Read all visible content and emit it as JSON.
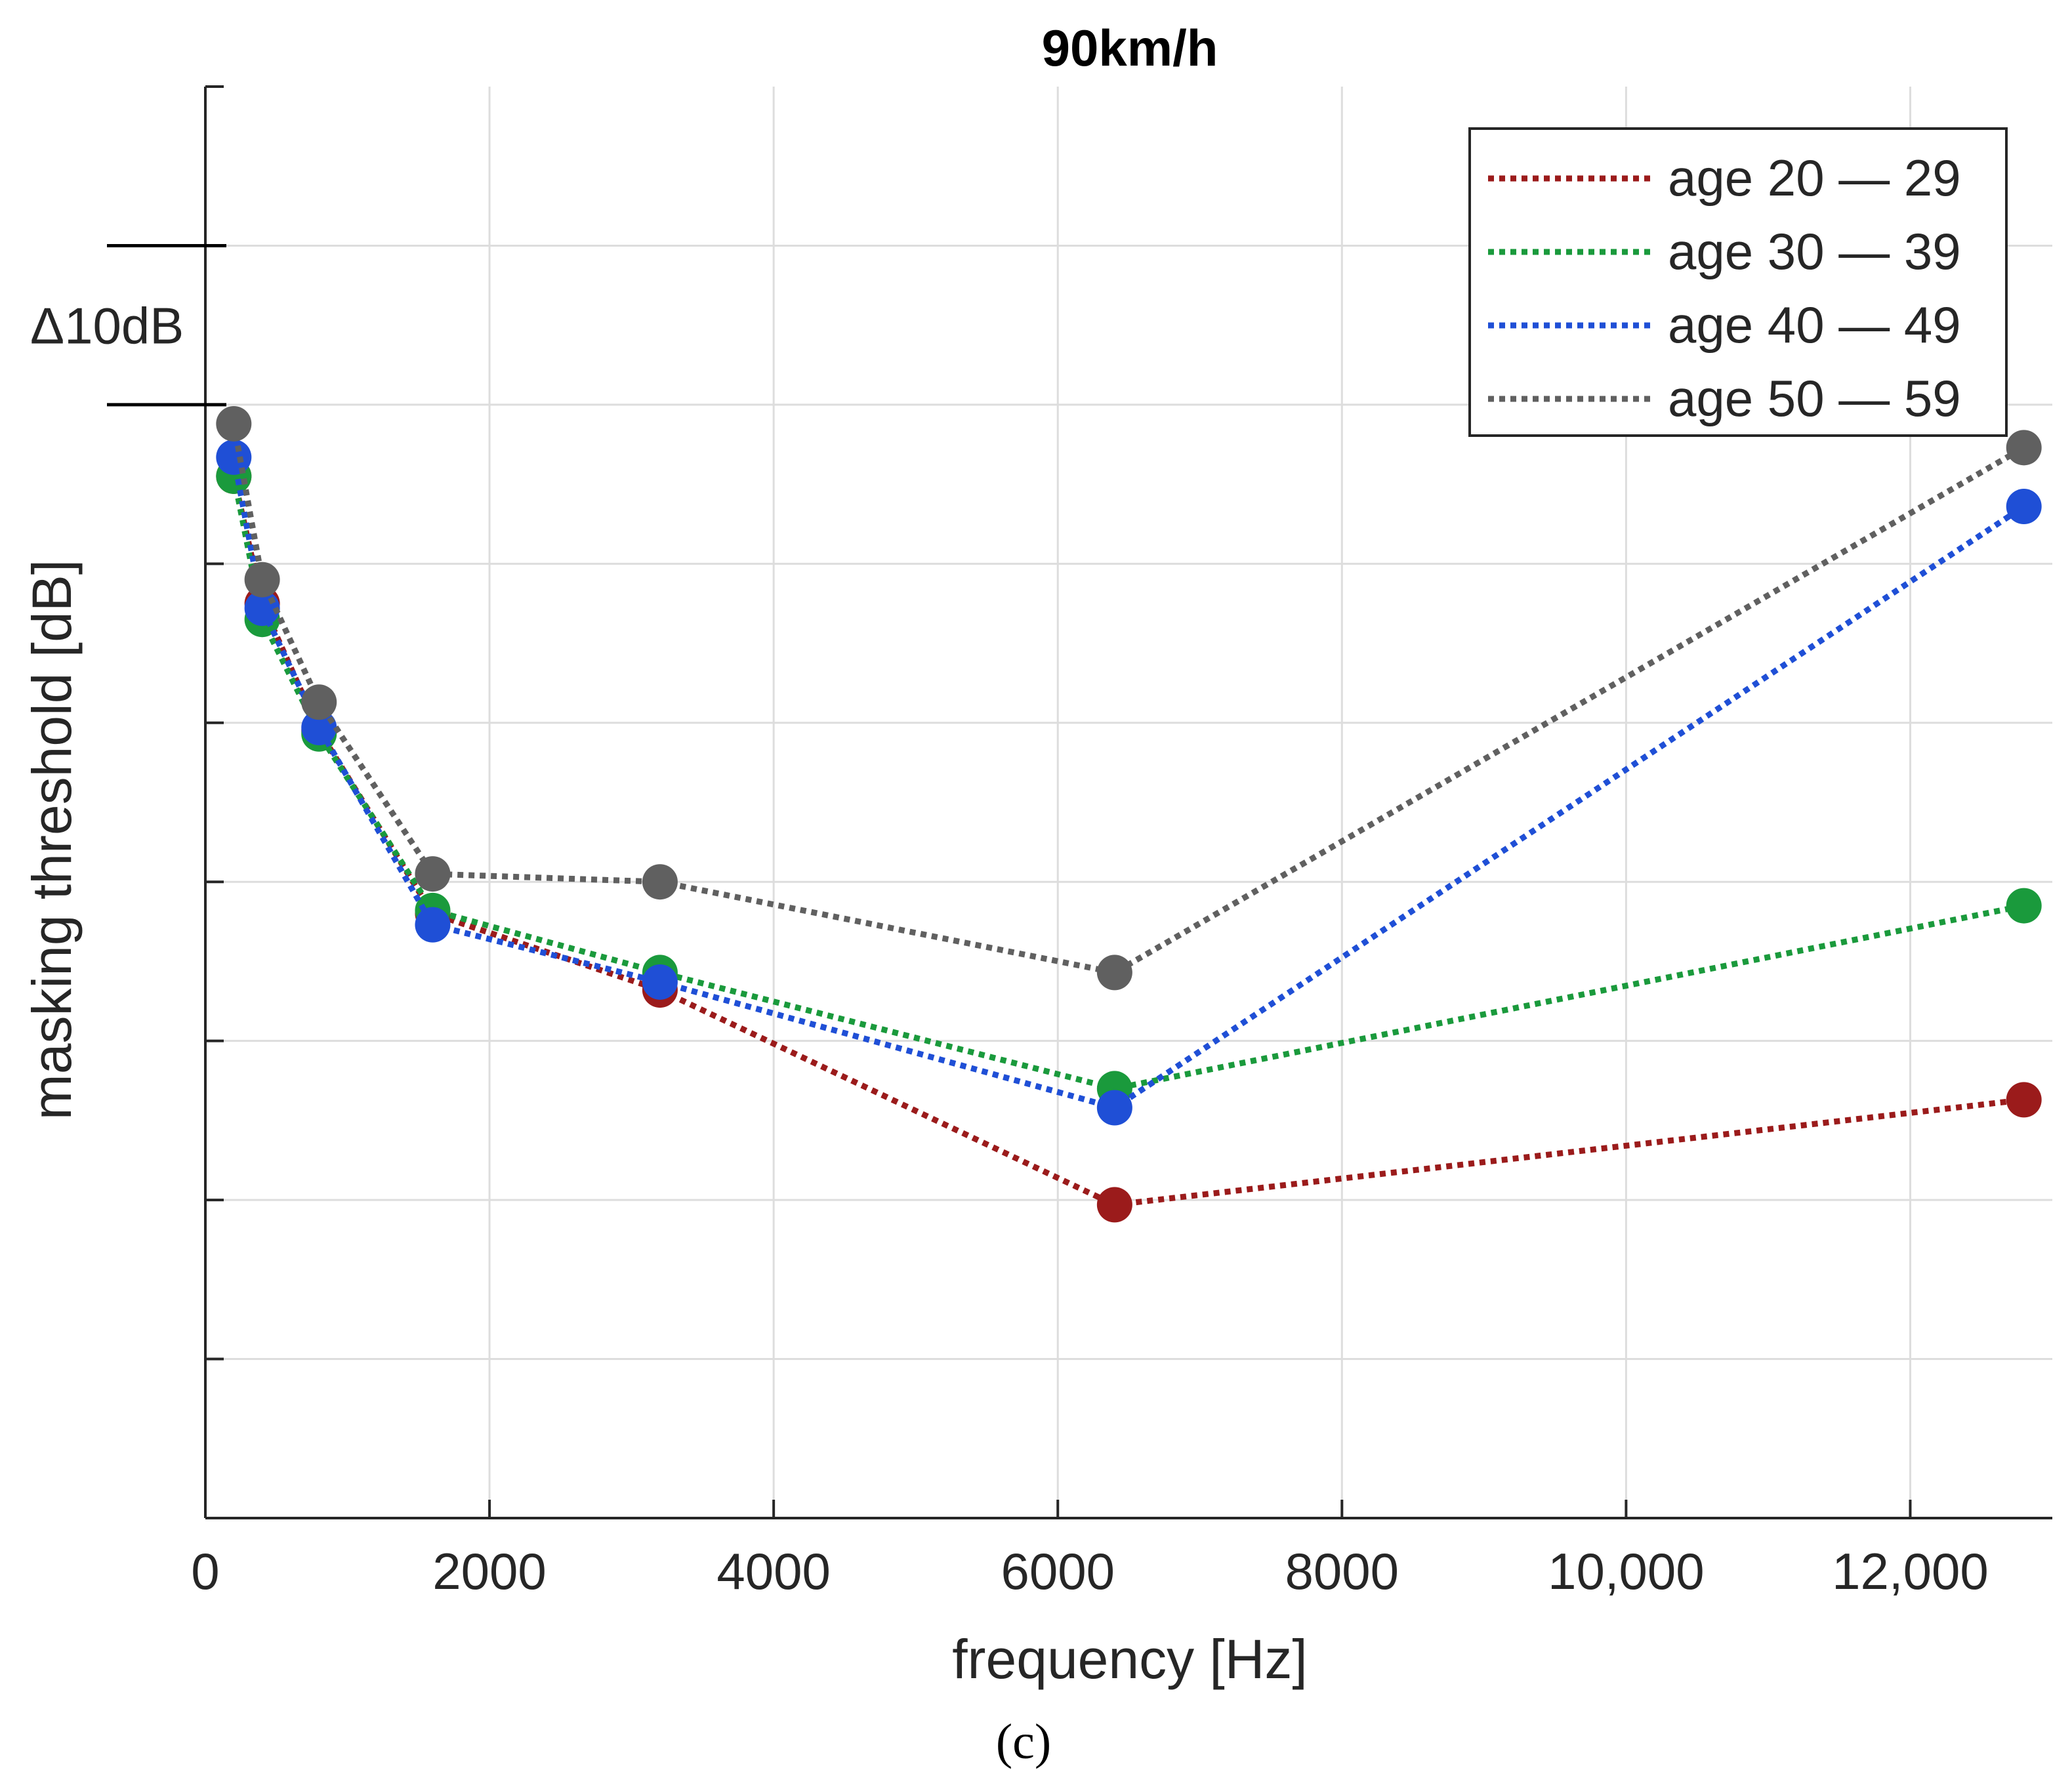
{
  "chart_data": {
    "type": "line",
    "title": "90km/h",
    "xlabel": "frequency [Hz]",
    "ylabel": "masking threshold [dB]",
    "xlim": [
      0,
      13000
    ],
    "ylim": [
      -9,
      0
    ],
    "y_units": "gridline steps of 10 dB (y tick labels are not printed)",
    "x_ticks": [
      0,
      2000,
      4000,
      6000,
      8000,
      10000,
      12000
    ],
    "x_tick_labels": [
      "0",
      "2000",
      "4000",
      "6000",
      "8000",
      "10,000",
      "12,000"
    ],
    "y_ticks": [
      -9,
      -8,
      -7,
      -6,
      -5,
      -4,
      -3,
      -2,
      -1,
      0
    ],
    "grid": true,
    "legend_position": "top-right",
    "scale_bar": {
      "label": "Δ10dB",
      "from": -2,
      "to": -1
    },
    "caption": "(c)",
    "x": [
      200,
      400,
      800,
      1600,
      3200,
      6400,
      12800
    ],
    "series": [
      {
        "name": "age 20 — 29",
        "color": "#9b1b1b",
        "values": [
          -2.45,
          -3.25,
          -4.05,
          -5.2,
          -5.68,
          -7.03,
          -6.37
        ]
      },
      {
        "name": "age 30 — 39",
        "color": "#1a9a3c",
        "values": [
          -2.45,
          -3.35,
          -4.07,
          -5.18,
          -5.57,
          -6.3,
          -5.15
        ]
      },
      {
        "name": "age 40 — 49",
        "color": "#1f4fd6",
        "values": [
          -2.33,
          -3.28,
          -4.03,
          -5.27,
          -5.63,
          -6.42,
          -2.64
        ]
      },
      {
        "name": "age 50 — 59",
        "color": "#606060",
        "values": [
          -2.12,
          -3.1,
          -3.87,
          -4.95,
          -5.0,
          -5.57,
          -2.27
        ]
      }
    ]
  }
}
